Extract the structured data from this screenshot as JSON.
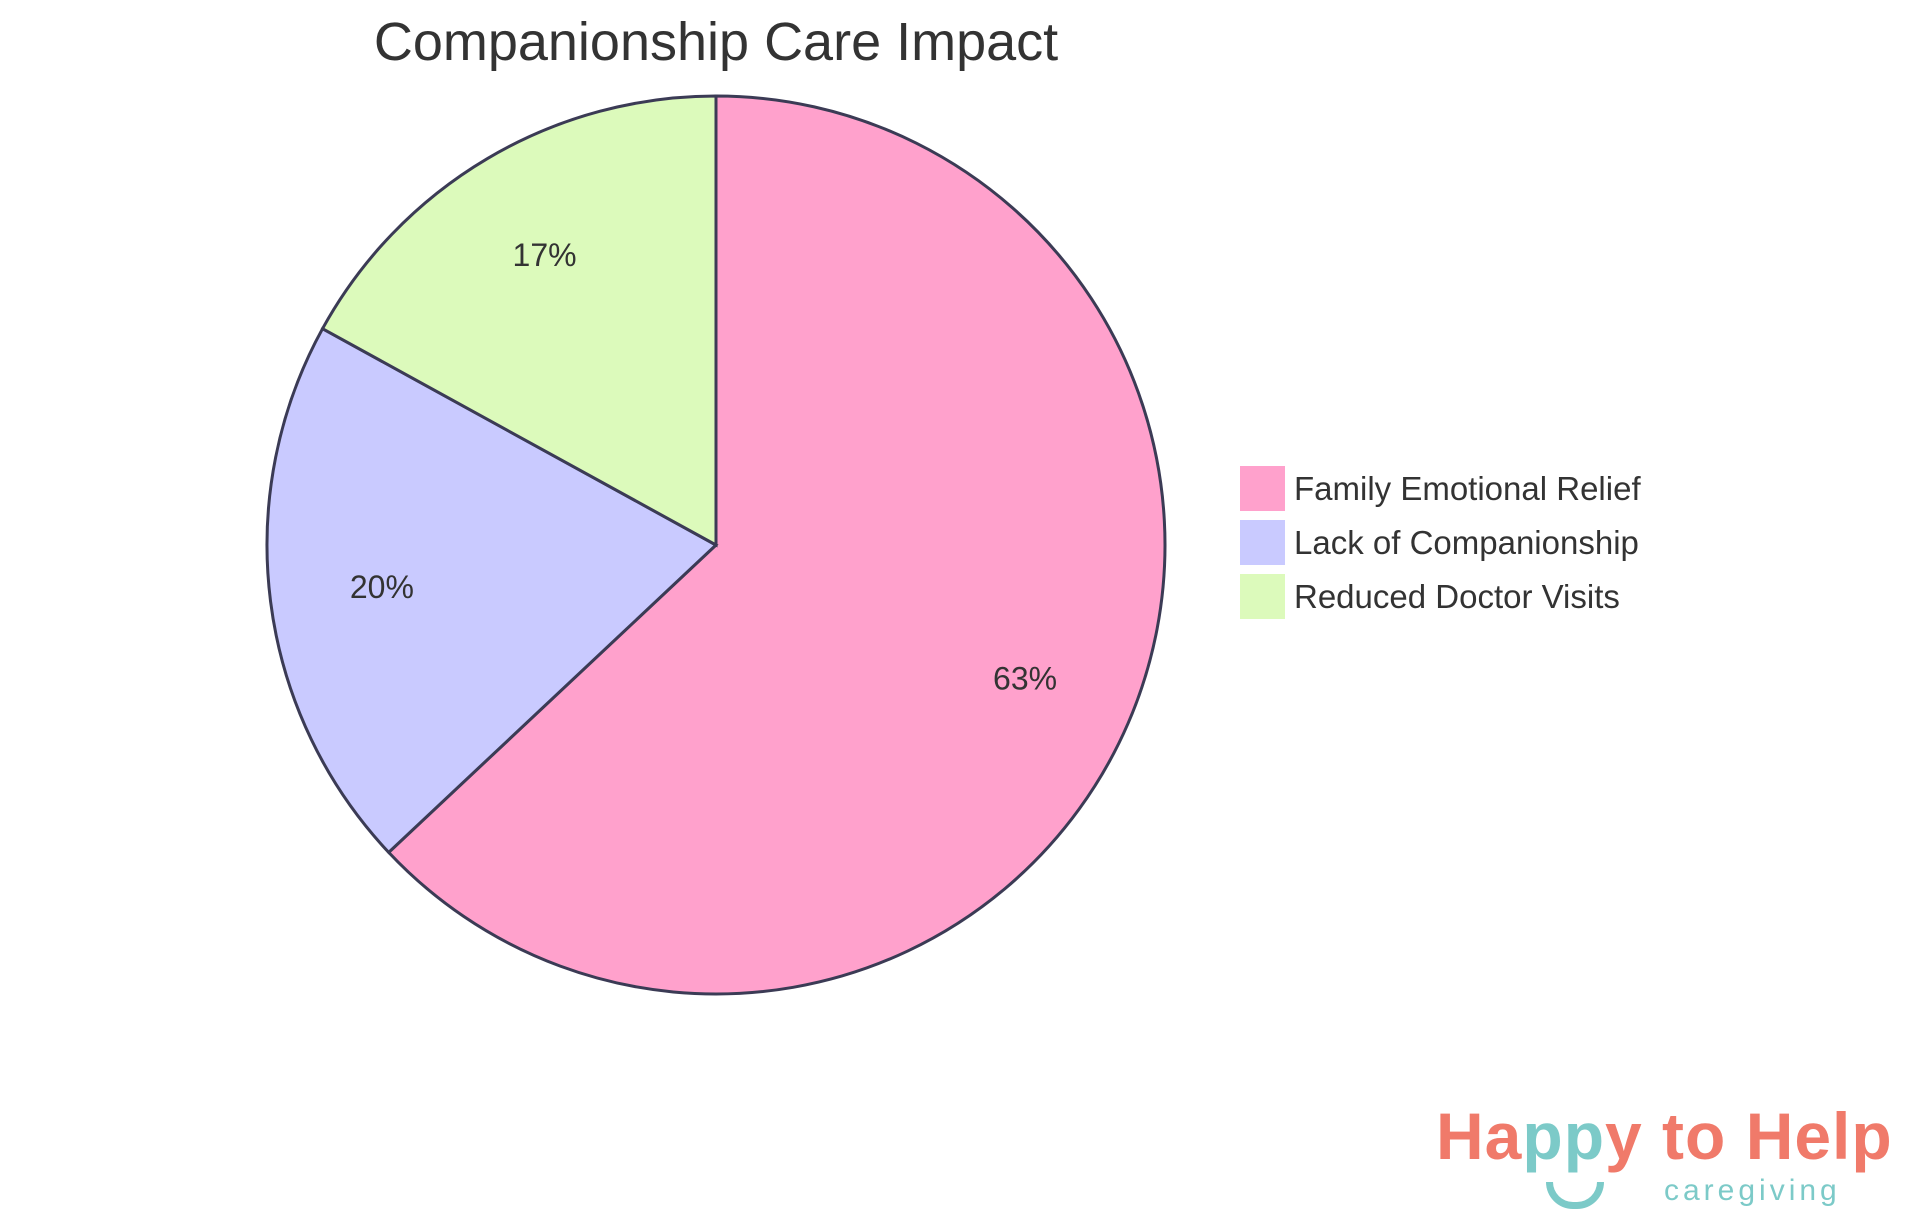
{
  "chart_data": {
    "type": "pie",
    "title": "Companionship Care Impact",
    "slices": [
      {
        "label": "Family Emotional Relief",
        "value": 63,
        "display": "63%",
        "color": "#ffa1cc"
      },
      {
        "label": "Lack of Companionship",
        "value": 20,
        "display": "20%",
        "color": "#c9caff"
      },
      {
        "label": "Reduced Doctor Visits",
        "value": 17,
        "display": "17%",
        "color": "#dcfabb"
      }
    ],
    "legend_placement": "right",
    "stroke_color": "#3b3b55"
  },
  "logo": {
    "text_a": "Ha",
    "text_b": "pp",
    "text_c": "y to Help",
    "sub": "caregiving"
  }
}
